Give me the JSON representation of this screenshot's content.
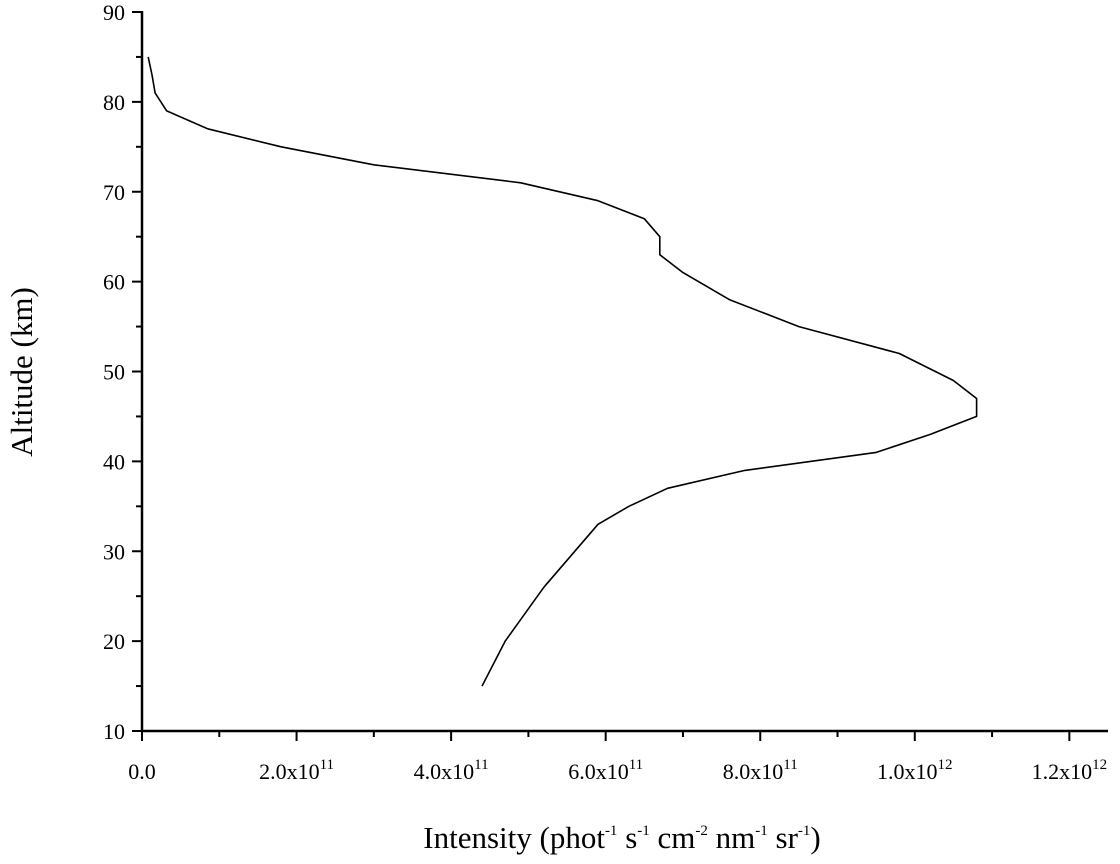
{
  "chart_data": {
    "type": "line",
    "title": "",
    "xlabel": "Intensity (phot-1 s-1 cm-2 nm-1 sr-1)",
    "xlabel_parts": [
      "Intensity (phot",
      "-1",
      " s",
      "-1",
      " cm",
      "-2",
      " nm",
      "-1",
      " sr",
      "-1",
      ")"
    ],
    "ylabel": "Altitude (km)",
    "xlim": [
      0,
      1250000000000.0
    ],
    "ylim": [
      10,
      90
    ],
    "grid": false,
    "x_ticks": [
      {
        "value": 0,
        "label": "0.0",
        "exp": ""
      },
      {
        "value": 200000000000.0,
        "label": "2.0x10",
        "exp": "11"
      },
      {
        "value": 400000000000.0,
        "label": "4.0x10",
        "exp": "11"
      },
      {
        "value": 600000000000.0,
        "label": "6.0x10",
        "exp": "11"
      },
      {
        "value": 800000000000.0,
        "label": "8.0x10",
        "exp": "11"
      },
      {
        "value": 1000000000000.0,
        "label": "1.0x10",
        "exp": "12"
      },
      {
        "value": 1200000000000.0,
        "label": "1.2x10",
        "exp": "12"
      }
    ],
    "y_ticks": [
      10,
      20,
      30,
      40,
      50,
      60,
      70,
      80,
      90
    ],
    "series": [
      {
        "color": "#000000",
        "x": [
          440000000000.0,
          470000000000.0,
          520000000000.0,
          590000000000.0,
          630000000000.0,
          680000000000.0,
          780000000000.0,
          950000000000.0,
          1020000000000.0,
          1080000000000.0,
          1080000000000.0,
          1050000000000.0,
          980000000000.0,
          850000000000.0,
          760000000000.0,
          700000000000.0,
          670000000000.0,
          670000000000.0,
          670000000000.0,
          650000000000.0,
          590000000000.0,
          490000000000.0,
          300000000000.0,
          180000000000.0,
          85000000000.0,
          32000000000.0,
          17000000000.0,
          13000000000.0,
          8000000000.0
        ],
        "y": [
          15,
          20,
          26,
          33,
          35,
          37,
          39,
          41,
          43,
          45,
          47,
          49,
          52,
          55,
          58,
          61,
          63,
          64,
          65,
          67,
          69,
          71,
          73,
          75,
          77,
          79,
          81,
          83,
          85
        ]
      }
    ]
  }
}
